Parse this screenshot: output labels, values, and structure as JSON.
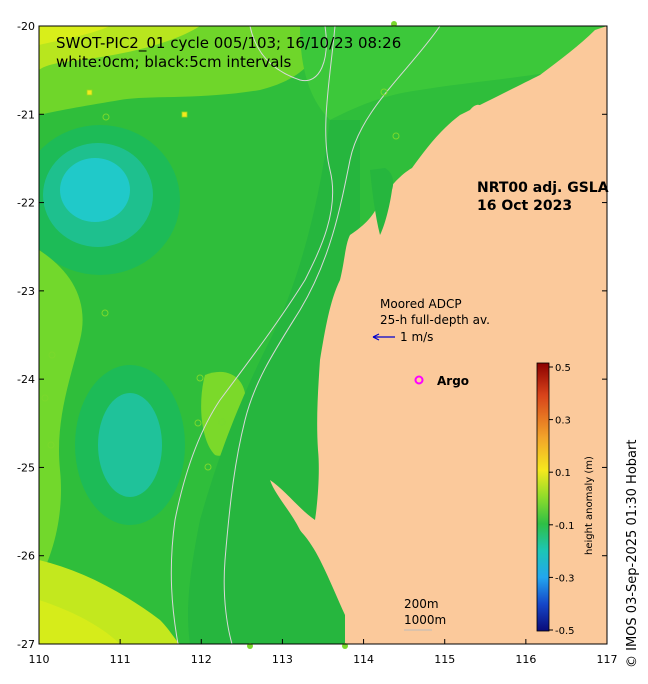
{
  "title": {
    "line1": "SWOT-PIC2_01 cycle 005/103; 16/10/23 08:26",
    "line2": "white:0cm; black:5cm intervals"
  },
  "product": {
    "line1": "NRT00 adj. GSLA",
    "line2": "16 Oct 2023"
  },
  "adcp": {
    "line1": "Moored ADCP",
    "line2": "25-h full-depth av.",
    "scale_label": "1 m/s"
  },
  "argo": {
    "label": "Argo",
    "marker_color": "#ff00ff"
  },
  "depth_legend": {
    "line1": "200m",
    "line2": "1000m"
  },
  "colorbar": {
    "label": "height anomaly (m)",
    "ticks": [
      "0.5",
      "0.3",
      "0.1",
      "-0.1",
      "-0.3",
      "-0.5"
    ],
    "range": [
      -0.5,
      0.5
    ]
  },
  "credit": "© IMOS 03-Sep-2025 01:30 Hobart",
  "axes": {
    "x_ticks": [
      "110",
      "111",
      "112",
      "113",
      "114",
      "115",
      "116",
      "117"
    ],
    "y_ticks": [
      "-20",
      "-21",
      "-22",
      "-23",
      "-24",
      "-25",
      "-26",
      "-27"
    ],
    "xlim": [
      110,
      117
    ],
    "ylim": [
      -27,
      -20
    ]
  },
  "colors": {
    "land": "#fbc99b",
    "sea_base": "#30c33c",
    "contour_zero": "#ffffff",
    "contour_5cm": "#000000"
  }
}
